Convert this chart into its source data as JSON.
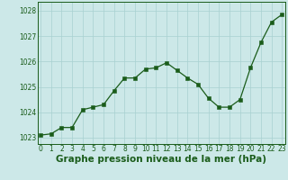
{
  "x": [
    0,
    1,
    2,
    3,
    4,
    5,
    6,
    7,
    8,
    9,
    10,
    11,
    12,
    13,
    14,
    15,
    16,
    17,
    18,
    19,
    20,
    21,
    22,
    23
  ],
  "y": [
    1023.1,
    1023.15,
    1023.4,
    1023.4,
    1024.1,
    1024.2,
    1024.3,
    1024.85,
    1025.35,
    1025.35,
    1025.7,
    1025.75,
    1025.95,
    1025.65,
    1025.35,
    1025.1,
    1024.55,
    1024.2,
    1024.2,
    1024.5,
    1025.75,
    1026.75,
    1027.55,
    1027.85
  ],
  "xlim": [
    -0.3,
    23.3
  ],
  "ylim": [
    1022.75,
    1028.35
  ],
  "yticks": [
    1023,
    1024,
    1025,
    1026,
    1027,
    1028
  ],
  "xticks": [
    0,
    1,
    2,
    3,
    4,
    5,
    6,
    7,
    8,
    9,
    10,
    11,
    12,
    13,
    14,
    15,
    16,
    17,
    18,
    19,
    20,
    21,
    22,
    23
  ],
  "xlabel": "Graphe pression niveau de la mer (hPa)",
  "line_color": "#1a5c1a",
  "marker_color": "#1a5c1a",
  "bg_plot": "#cce8e8",
  "bg_fig": "#cce8e8",
  "grid_color": "#a8d0d0",
  "xlabel_color": "#1a5c1a",
  "tick_color": "#1a5c1a",
  "spine_color": "#1a5c1a",
  "tick_fontsize": 5.5,
  "xlabel_fontsize": 7.5
}
